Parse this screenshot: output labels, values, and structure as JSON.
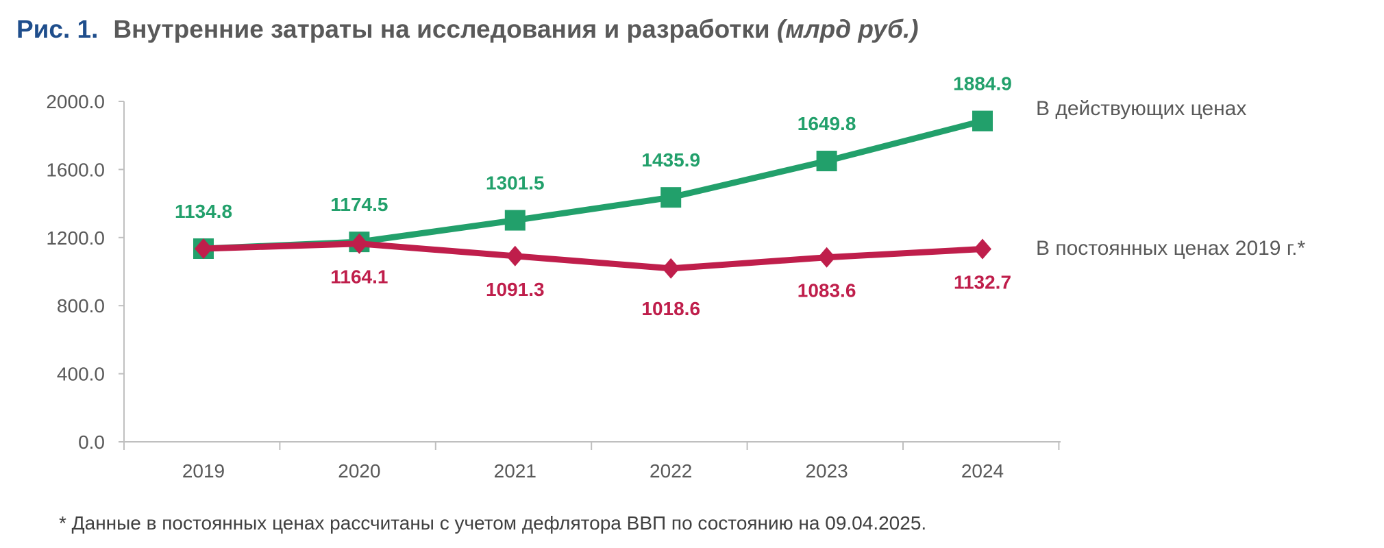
{
  "title": {
    "figure": "Рис. 1.",
    "text": "Внутренние затраты на исследования и разработки",
    "unit": "(млрд руб.)"
  },
  "footnote": "* Данные в постоянных ценах рассчитаны с учетом дефлятора ВВП по состоянию на 09.04.2025.",
  "chart_data": {
    "type": "line",
    "title": "Внутренние затраты на исследования и разработки (млрд руб.)",
    "categories": [
      "2019",
      "2020",
      "2021",
      "2022",
      "2023",
      "2024"
    ],
    "ylim": [
      0,
      2000
    ],
    "yticks": [
      "0.0",
      "400.0",
      "800.0",
      "1200.0",
      "1600.0",
      "2000.0"
    ],
    "grid": false,
    "legend": "right, inline labels",
    "series": [
      {
        "name": "В действующих ценах",
        "values": [
          1134.8,
          1174.5,
          1301.5,
          1435.9,
          1649.8,
          1884.9
        ],
        "labels": [
          "1134.8",
          "1174.5",
          "1301.5",
          "1435.9",
          "1649.8",
          "1884.9"
        ],
        "color": "#22a06b",
        "marker": "square"
      },
      {
        "name": "В постоянных ценах 2019 г.*",
        "values": [
          1134.8,
          1164.1,
          1091.3,
          1018.6,
          1083.6,
          1132.7
        ],
        "labels": [
          "",
          "1164.1",
          "1091.3",
          "1018.6",
          "1083.6",
          "1132.7"
        ],
        "color": "#bf1e4b",
        "marker": "diamond"
      }
    ]
  }
}
